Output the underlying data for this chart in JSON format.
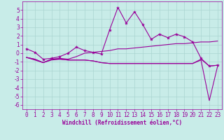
{
  "xlabel": "Windchill (Refroidissement éolien,°C)",
  "background_color": "#c8ece8",
  "grid_color": "#aad4d0",
  "line_color": "#990099",
  "x": [
    0,
    1,
    2,
    3,
    4,
    5,
    6,
    7,
    8,
    9,
    10,
    11,
    12,
    13,
    14,
    15,
    16,
    17,
    18,
    19,
    20,
    21,
    22,
    23
  ],
  "line1": [
    0.5,
    0.1,
    -0.7,
    -0.6,
    -0.4,
    0.0,
    0.7,
    0.3,
    0.1,
    -0.1,
    2.7,
    5.3,
    3.5,
    4.8,
    3.3,
    1.6,
    2.2,
    1.8,
    2.2,
    1.9,
    1.3,
    -0.6,
    -1.5,
    -1.4
  ],
  "line2": [
    -0.5,
    -0.8,
    -1.1,
    -0.7,
    -0.6,
    -0.7,
    -0.4,
    0.0,
    0.1,
    0.2,
    0.3,
    0.5,
    0.5,
    0.6,
    0.7,
    0.8,
    0.9,
    1.0,
    1.1,
    1.1,
    1.2,
    1.3,
    1.3,
    1.4
  ],
  "line3": [
    -0.5,
    -0.7,
    -1.1,
    -0.8,
    -0.7,
    -0.8,
    -0.8,
    -0.8,
    -0.9,
    -1.1,
    -1.2,
    -1.2,
    -1.2,
    -1.2,
    -1.2,
    -1.2,
    -1.2,
    -1.2,
    -1.2,
    -1.2,
    -1.2,
    -0.8,
    -5.5,
    -1.5
  ],
  "line4": [
    -0.5,
    -0.7,
    -1.1,
    -0.7,
    -0.7,
    -0.8,
    -0.8,
    -0.8,
    -0.9,
    -1.1,
    -1.2,
    -1.2,
    -1.2,
    -1.2,
    -1.2,
    -1.2,
    -1.2,
    -1.2,
    -1.2,
    -1.2,
    -1.2,
    -0.7,
    -1.5,
    -1.4
  ],
  "ylim": [
    -6.5,
    6.0
  ],
  "yticks": [
    -6,
    -5,
    -4,
    -3,
    -2,
    -1,
    0,
    1,
    2,
    3,
    4,
    5
  ],
  "xticks": [
    0,
    1,
    2,
    3,
    4,
    5,
    6,
    7,
    8,
    9,
    10,
    11,
    12,
    13,
    14,
    15,
    16,
    17,
    18,
    19,
    20,
    21,
    22,
    23
  ],
  "tick_fontsize": 5.5,
  "xlabel_fontsize": 5.5,
  "linewidth": 0.8,
  "marker_size": 3.0
}
